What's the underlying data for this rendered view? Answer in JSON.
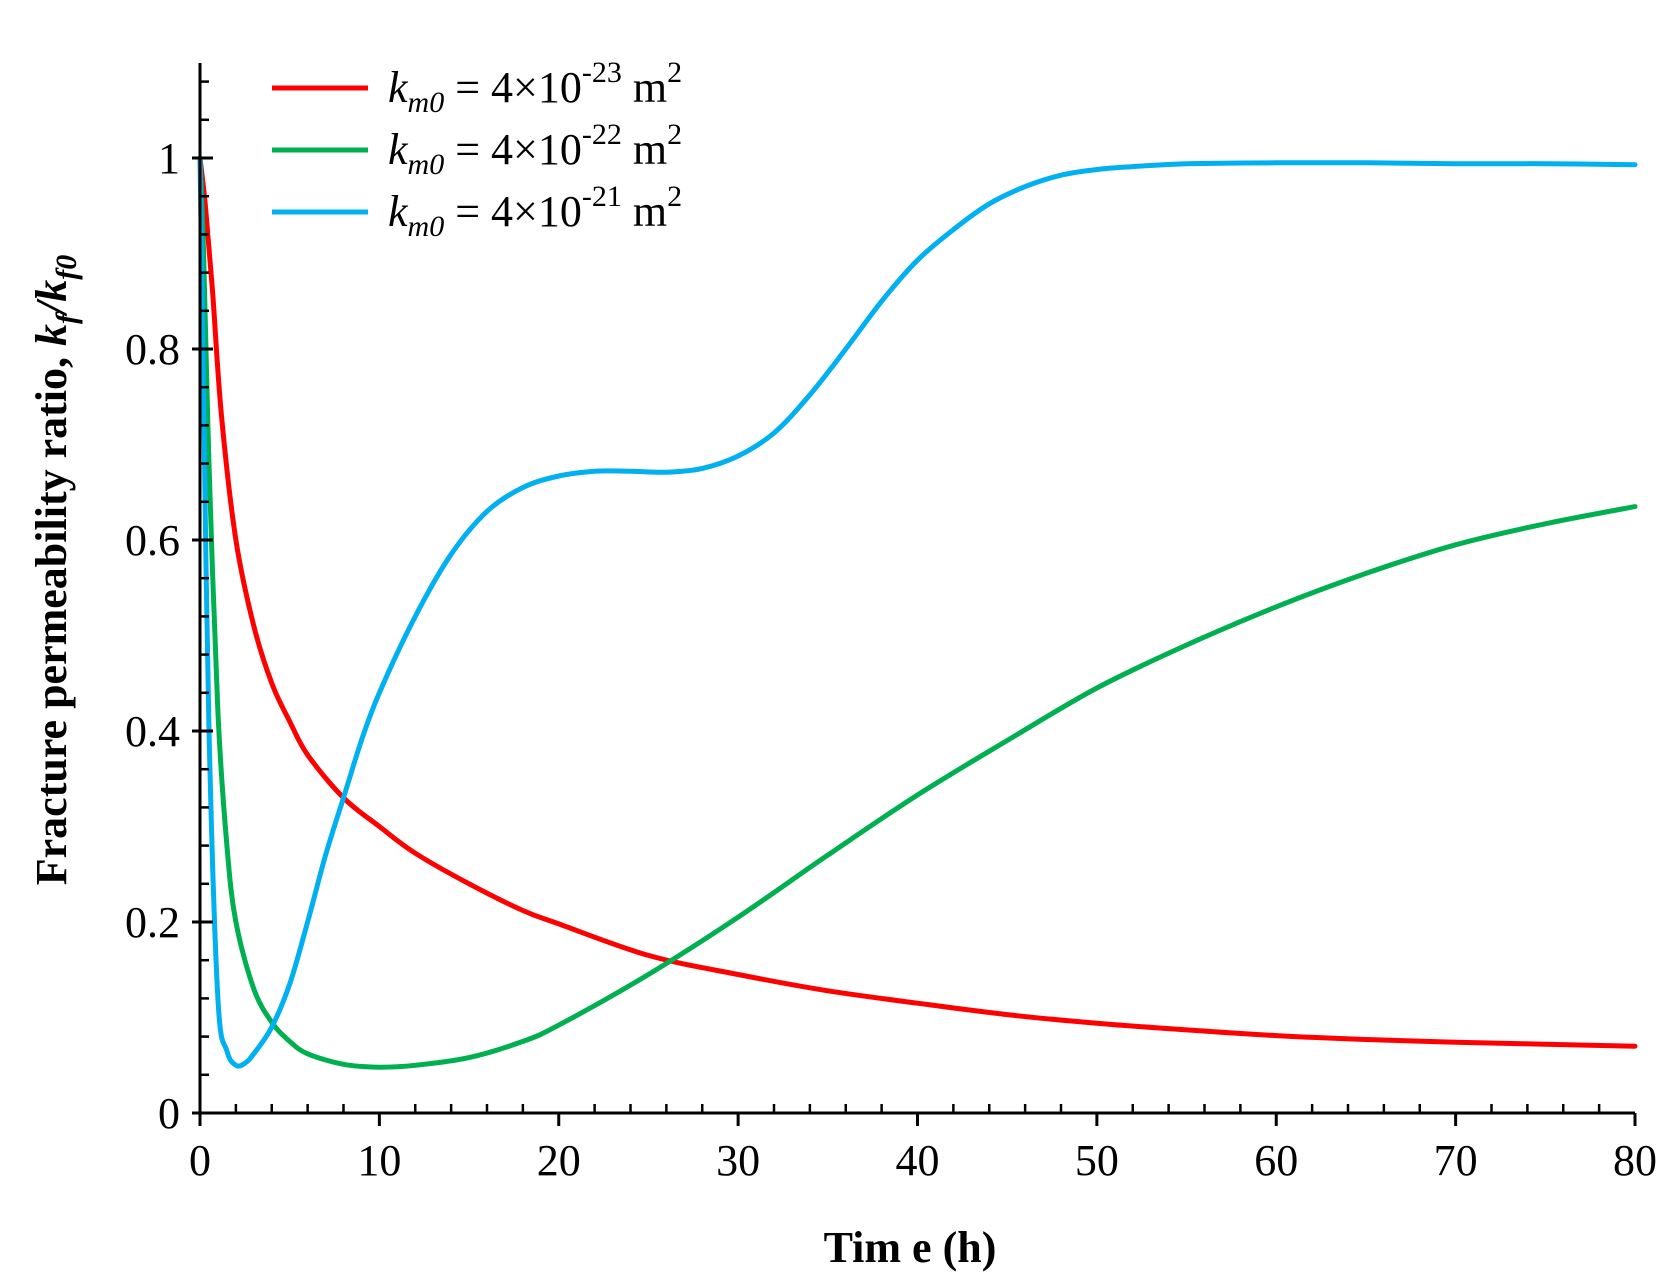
{
  "chart_data": {
    "type": "line",
    "title": "",
    "xlabel": "Tim e (h)",
    "ylabel": "Fracture permeability ratio, ",
    "ylabel_symbol": {
      "k": "k",
      "f": "f",
      "slash": "/",
      "k2": "k",
      "f0": "f0"
    },
    "xlim": [
      0,
      80
    ],
    "ylim": [
      0,
      1.1
    ],
    "xticks": [
      0,
      10,
      20,
      30,
      40,
      50,
      60,
      70,
      80
    ],
    "xtick_labels": [
      "0",
      "10",
      "20",
      "30",
      "40",
      "50",
      "60",
      "70",
      "80"
    ],
    "yticks": [
      0,
      0.2,
      0.4,
      0.6,
      0.8,
      1
    ],
    "ytick_labels": [
      "0",
      "0.2",
      "0.4",
      "0.6",
      "0.8",
      "1"
    ],
    "legend_position": "top-left",
    "series": [
      {
        "name": "k_m0 = 4×10^-23 m^2",
        "legend": {
          "k": "k",
          "sub": "m0",
          "eq": " = 4×10",
          "exp": "-23",
          "unit": " m",
          "unitexp": "2"
        },
        "color": "#ff0000",
        "x": [
          0,
          0.3,
          0.7,
          1.2,
          2,
          3,
          4,
          5,
          6,
          8,
          10,
          12,
          15,
          18,
          20,
          25,
          30,
          35,
          40,
          45,
          50,
          55,
          60,
          65,
          70,
          75,
          80
        ],
        "y": [
          1.0,
          0.95,
          0.86,
          0.73,
          0.6,
          0.51,
          0.45,
          0.41,
          0.375,
          0.33,
          0.3,
          0.272,
          0.24,
          0.212,
          0.198,
          0.165,
          0.145,
          0.128,
          0.115,
          0.103,
          0.094,
          0.087,
          0.081,
          0.077,
          0.074,
          0.072,
          0.07
        ]
      },
      {
        "name": "k_m0 = 4×10^-22 m^2",
        "legend": {
          "k": "k",
          "sub": "m0",
          "eq": " = 4×10",
          "exp": "-22",
          "unit": " m",
          "unitexp": "2"
        },
        "color": "#00b050",
        "x": [
          0,
          0.2,
          0.5,
          1,
          1.5,
          2,
          3,
          4,
          5,
          6,
          8,
          10,
          12,
          15,
          18,
          20,
          25,
          30,
          35,
          40,
          45,
          50,
          55,
          60,
          65,
          70,
          75,
          80
        ],
        "y": [
          1.0,
          0.9,
          0.68,
          0.42,
          0.28,
          0.2,
          0.13,
          0.095,
          0.075,
          0.062,
          0.051,
          0.048,
          0.05,
          0.058,
          0.075,
          0.092,
          0.145,
          0.205,
          0.27,
          0.333,
          0.39,
          0.445,
          0.49,
          0.53,
          0.565,
          0.595,
          0.617,
          0.635
        ]
      },
      {
        "name": "k_m0 = 4×10^-21 m^2",
        "legend": {
          "k": "k",
          "sub": "m0",
          "eq": " = 4×10",
          "exp": "-21",
          "unit": " m",
          "unitexp": "2"
        },
        "color": "#00b0f0",
        "x": [
          0,
          0.2,
          0.5,
          1,
          1.5,
          2,
          2.5,
          3,
          4,
          5,
          6,
          7,
          8,
          9,
          10,
          12,
          14,
          16,
          18,
          20,
          22,
          24,
          26,
          28,
          30,
          32,
          34,
          36,
          38,
          40,
          42,
          44,
          46,
          48,
          50,
          52,
          55,
          60,
          65,
          70,
          75,
          80
        ],
        "y": [
          1.0,
          0.75,
          0.4,
          0.12,
          0.065,
          0.05,
          0.052,
          0.062,
          0.09,
          0.135,
          0.2,
          0.27,
          0.33,
          0.39,
          0.44,
          0.52,
          0.585,
          0.63,
          0.655,
          0.667,
          0.672,
          0.672,
          0.671,
          0.675,
          0.688,
          0.712,
          0.752,
          0.8,
          0.85,
          0.893,
          0.925,
          0.952,
          0.97,
          0.982,
          0.988,
          0.991,
          0.994,
          0.995,
          0.995,
          0.994,
          0.994,
          0.993
        ]
      }
    ]
  }
}
